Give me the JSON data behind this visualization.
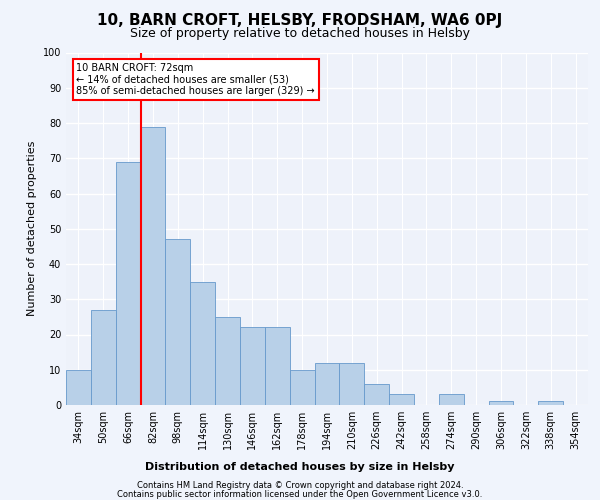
{
  "title": "10, BARN CROFT, HELSBY, FRODSHAM, WA6 0PJ",
  "subtitle": "Size of property relative to detached houses in Helsby",
  "xlabel": "Distribution of detached houses by size in Helsby",
  "ylabel": "Number of detached properties",
  "categories": [
    "34sqm",
    "50sqm",
    "66sqm",
    "82sqm",
    "98sqm",
    "114sqm",
    "130sqm",
    "146sqm",
    "162sqm",
    "178sqm",
    "194sqm",
    "210sqm",
    "226sqm",
    "242sqm",
    "258sqm",
    "274sqm",
    "290sqm",
    "306sqm",
    "322sqm",
    "338sqm",
    "354sqm"
  ],
  "values": [
    10,
    27,
    69,
    79,
    47,
    35,
    25,
    22,
    22,
    10,
    12,
    12,
    6,
    3,
    0,
    3,
    0,
    1,
    0,
    1,
    0
  ],
  "bar_color": "#b8d0e8",
  "bar_edge_color": "#6699cc",
  "annotation_line1": "10 BARN CROFT: 72sqm",
  "annotation_line2": "← 14% of detached houses are smaller (53)",
  "annotation_line3": "85% of semi-detached houses are larger (329) →",
  "annotation_box_color": "white",
  "annotation_box_edge_color": "red",
  "vline_color": "red",
  "vline_x": 2.5,
  "ylim": [
    0,
    100
  ],
  "yticks": [
    0,
    10,
    20,
    30,
    40,
    50,
    60,
    70,
    80,
    90,
    100
  ],
  "footer1": "Contains HM Land Registry data © Crown copyright and database right 2024.",
  "footer2": "Contains public sector information licensed under the Open Government Licence v3.0.",
  "bg_color": "#eef2fa",
  "grid_color": "white",
  "title_fontsize": 11,
  "subtitle_fontsize": 9,
  "xlabel_fontsize": 8,
  "ylabel_fontsize": 8,
  "tick_fontsize": 7,
  "footer_fontsize": 6,
  "annot_fontsize": 7
}
